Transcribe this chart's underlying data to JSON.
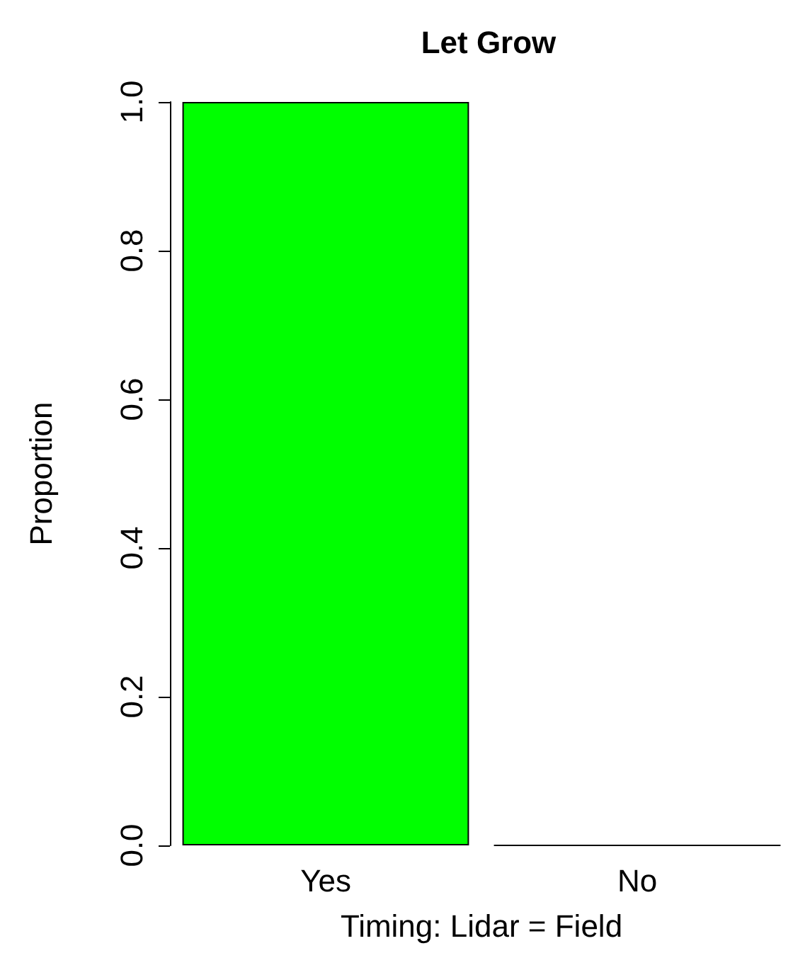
{
  "chart_data": {
    "type": "bar",
    "title": "Let Grow",
    "xlabel": "Timing: Lidar = Field",
    "ylabel": "Proportion",
    "categories": [
      "Yes",
      "No"
    ],
    "values": [
      1.0,
      0.0
    ],
    "color": "#00ff00",
    "ylim": [
      0,
      1
    ],
    "yticks": [
      {
        "value": 0,
        "label": "0.0"
      },
      0.2,
      0.4,
      0.6,
      0.8,
      {
        "value": 1,
        "label": "1.0"
      }
    ],
    "grid": false
  }
}
